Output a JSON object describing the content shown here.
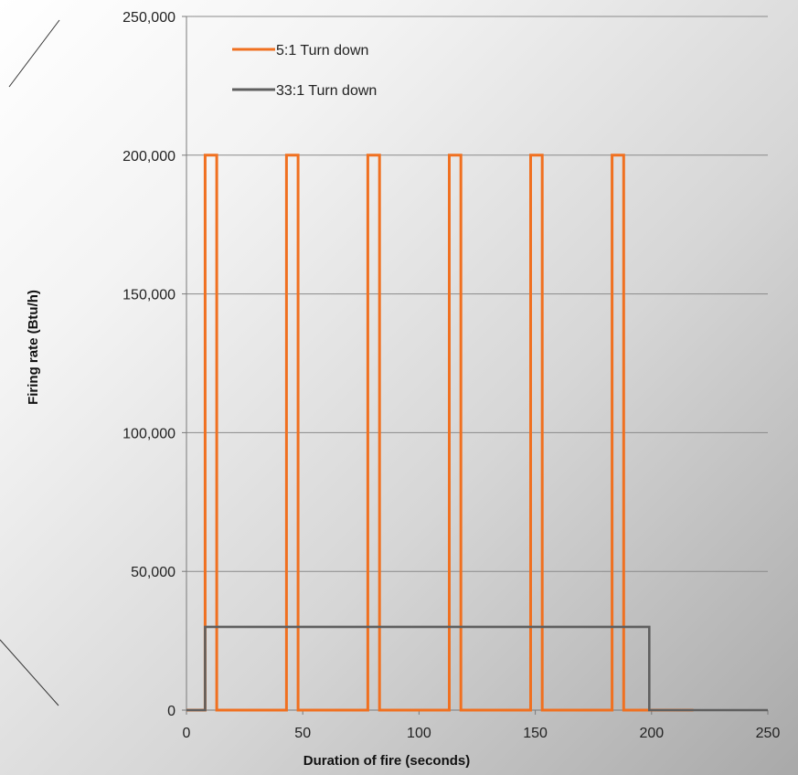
{
  "chart_data": {
    "type": "line",
    "title": "",
    "xlabel": "Duration of fire (seconds)",
    "ylabel": "Firing rate (Btu/h)",
    "xlim": [
      0,
      250
    ],
    "ylim": [
      0,
      250000
    ],
    "xticks": [
      0,
      50,
      100,
      150,
      200,
      250
    ],
    "yticks": [
      0,
      50000,
      100000,
      150000,
      200000,
      250000
    ],
    "xtick_labels": [
      "0",
      "50",
      "100",
      "150",
      "200",
      "250"
    ],
    "ytick_labels": [
      "0",
      "50,000",
      "100,000",
      "150,000",
      "200,000",
      "250,000"
    ],
    "grid": "horizontal",
    "legend_position": "top-left",
    "series": [
      {
        "name": "5:1 Turn down",
        "color": "#F07020",
        "x": [
          0,
          8,
          8,
          13,
          13,
          43,
          43,
          48,
          48,
          78,
          78,
          83,
          83,
          113,
          113,
          118,
          118,
          148,
          148,
          153,
          153,
          183,
          183,
          188,
          188,
          218
        ],
        "y": [
          0,
          0,
          200000,
          200000,
          0,
          0,
          200000,
          200000,
          0,
          0,
          200000,
          200000,
          0,
          0,
          200000,
          200000,
          0,
          0,
          200000,
          200000,
          0,
          0,
          200000,
          200000,
          0,
          0
        ]
      },
      {
        "name": "33:1 Turn down",
        "color": "#5F5F5F",
        "x": [
          0,
          8,
          8,
          199,
          199,
          250
        ],
        "y": [
          0,
          0,
          30000,
          30000,
          0,
          0
        ]
      }
    ]
  }
}
